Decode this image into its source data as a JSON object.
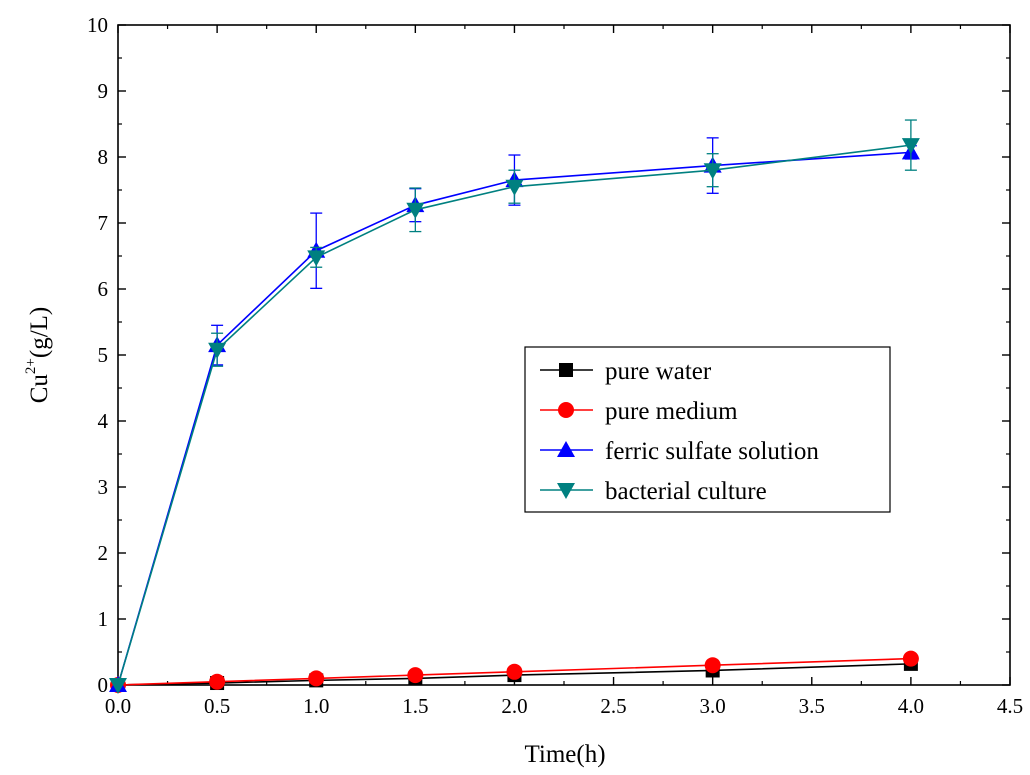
{
  "chart_data": {
    "type": "line",
    "title": "",
    "xlabel": "Time(h)",
    "ylabel_base": "Cu",
    "ylabel_superscript": "2+",
    "ylabel_suffix": "(g/L)",
    "xlim": [
      0,
      4.5
    ],
    "ylim": [
      0,
      10
    ],
    "xticks": [
      0,
      0.5,
      1,
      1.5,
      2,
      2.5,
      3,
      3.5,
      4,
      4.5
    ],
    "xtick_labels": [
      "0.0",
      "0.5",
      "1.0",
      "1.5",
      "2.0",
      "2.5",
      "3.0",
      "3.5",
      "4.0",
      "4.5"
    ],
    "yticks": [
      0,
      1,
      2,
      3,
      4,
      5,
      6,
      7,
      8,
      9,
      10
    ],
    "ytick_labels": [
      "0",
      "1",
      "2",
      "3",
      "4",
      "5",
      "6",
      "7",
      "8",
      "9",
      "10"
    ],
    "grid": false,
    "legend_position": "center-right",
    "x": [
      0,
      0.5,
      1,
      1.5,
      2,
      3,
      4
    ],
    "series": [
      {
        "name": "pure water",
        "color": "#000000",
        "marker": "square",
        "values": [
          0,
          0.03,
          0.07,
          0.1,
          0.15,
          0.22,
          0.32
        ]
      },
      {
        "name": "pure medium",
        "color": "#ff0000",
        "marker": "circle",
        "values": [
          0,
          0.05,
          0.1,
          0.15,
          0.2,
          0.3,
          0.4
        ]
      },
      {
        "name": "ferric sulfate solution",
        "color": "#0000ff",
        "marker": "triangle-up",
        "values": [
          0,
          5.15,
          6.58,
          7.27,
          7.65,
          7.87,
          8.07
        ],
        "error": [
          0,
          0.3,
          0.57,
          0.25,
          0.38,
          0.42,
          0.1
        ]
      },
      {
        "name": "bacterial culture",
        "color": "#008080",
        "marker": "triangle-down",
        "values": [
          0,
          5.08,
          6.48,
          7.2,
          7.55,
          7.8,
          8.18
        ],
        "error": [
          0,
          0.25,
          0.15,
          0.33,
          0.25,
          0.25,
          0.38
        ]
      }
    ]
  }
}
